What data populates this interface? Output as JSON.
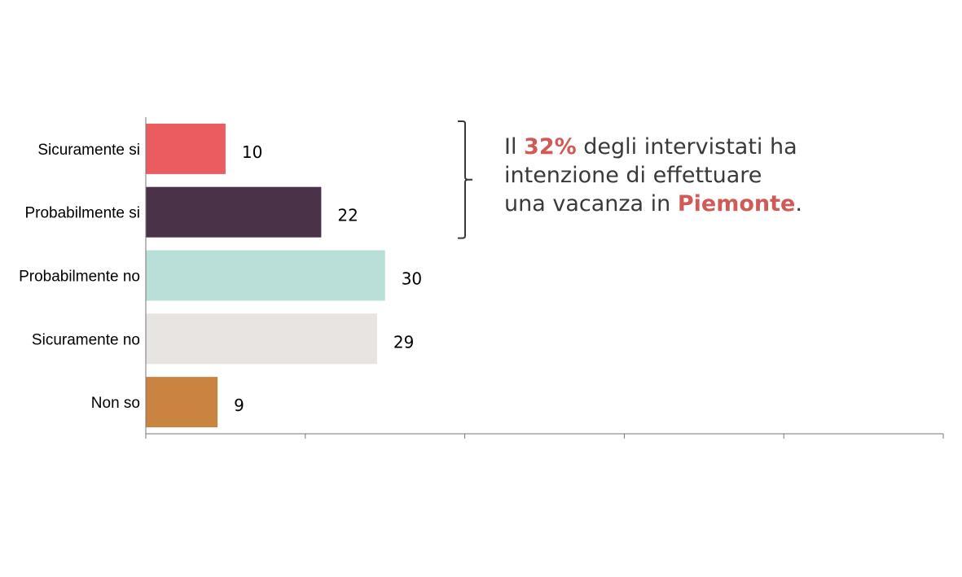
{
  "chart_data": {
    "type": "bar",
    "orientation": "horizontal",
    "categories": [
      "Sicuramente si",
      "Probabilmente si",
      "Probabilmente no",
      "Sicuramente no",
      "Non so"
    ],
    "values": [
      10,
      22,
      30,
      29,
      9
    ],
    "data_labels": [
      "10",
      "22",
      "30",
      "29",
      "9"
    ],
    "bar_colors": [
      "#eb5c61",
      "#4a3249",
      "#b9dfd8",
      "#e8e4e1",
      "#c98442"
    ],
    "xlim": [
      0,
      100
    ],
    "x_tick_count": 6,
    "grid": false,
    "legend": "none"
  },
  "annotation": {
    "bracket_groups": [
      "Sicuramente si",
      "Probabilmente si"
    ],
    "line1_pre": "Il ",
    "line1_highlight": "32%",
    "line1_post": " degli intervistati ha",
    "line2": "intenzione di effettuare",
    "line3_pre": "una vacanza in ",
    "line3_highlight": "Piemonte",
    "line3_post": ".",
    "highlight_color": "#cf5a56",
    "text_color": "#3a3a3a"
  }
}
